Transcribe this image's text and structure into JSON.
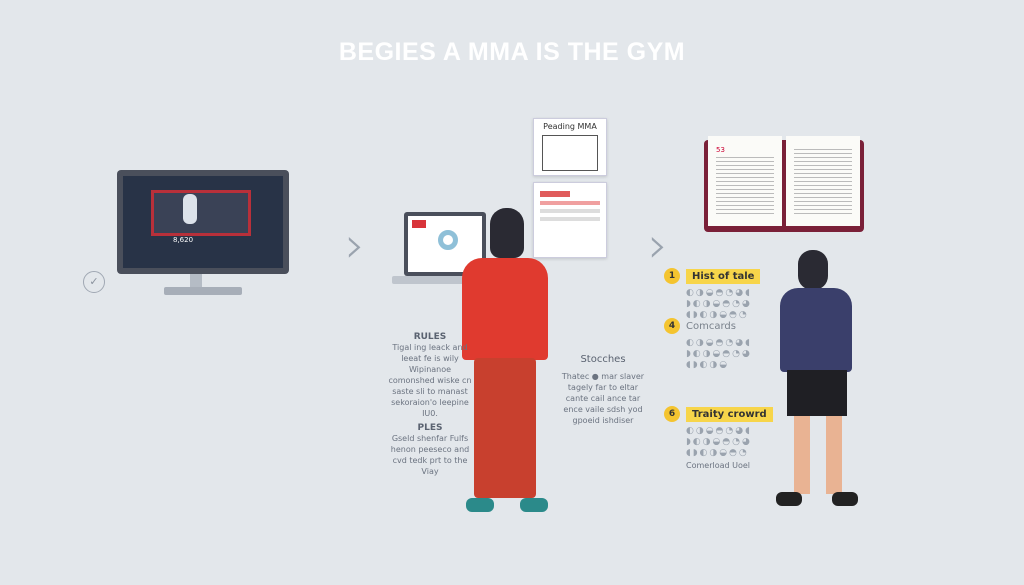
{
  "title": "BEGIES A MMA IS THE GYM",
  "doc_title": "Peading MMA",
  "book_page": "53",
  "monitor_text": "8,620",
  "left": {
    "rules_head": "RULES",
    "rules_text": "Tigal ing leack and leeat fe is wily Wipinanoe comonshed wiske cn saste sli to manast sekoraion'o leepine IU0.",
    "ples_head": "PLES",
    "ples_text": "Gseld shenfar Fulfs henon peeseco and cvd tedk prt to the Viay"
  },
  "middle": {
    "label": "Stocches",
    "text": "Thatec ● mar slaver tagely far to eltar cante cail ance tar ence vaile sdsh yod gpoeid ishdiser"
  },
  "steps": [
    {
      "num": "1",
      "label": "Hist of tale",
      "icons": "◐◑◒◓◔◕◖\n◗◐◑◒◓◔◕\n◖◗◐◑◒◓◔"
    },
    {
      "num": "4",
      "label": "Comcards",
      "icons": "◐◑◒◓◔◕◖\n◗◐◑◒◓◔◕\n◖◗◐◑◒"
    },
    {
      "num": "6",
      "label": "Traity crowrd",
      "icons": "◐◑◒◓◔◕◖\n◗◐◑◒◓◔◕\n◖◗◐◑◒◓◔",
      "caption": "Comerload Uoel"
    }
  ],
  "colors": {
    "background": "#e3e7eb",
    "red_shirt": "#e03a2f",
    "pants": "#c8402e",
    "navy_shirt": "#3a3f6b",
    "accent": "#f4c430",
    "book": "#7a2038"
  }
}
